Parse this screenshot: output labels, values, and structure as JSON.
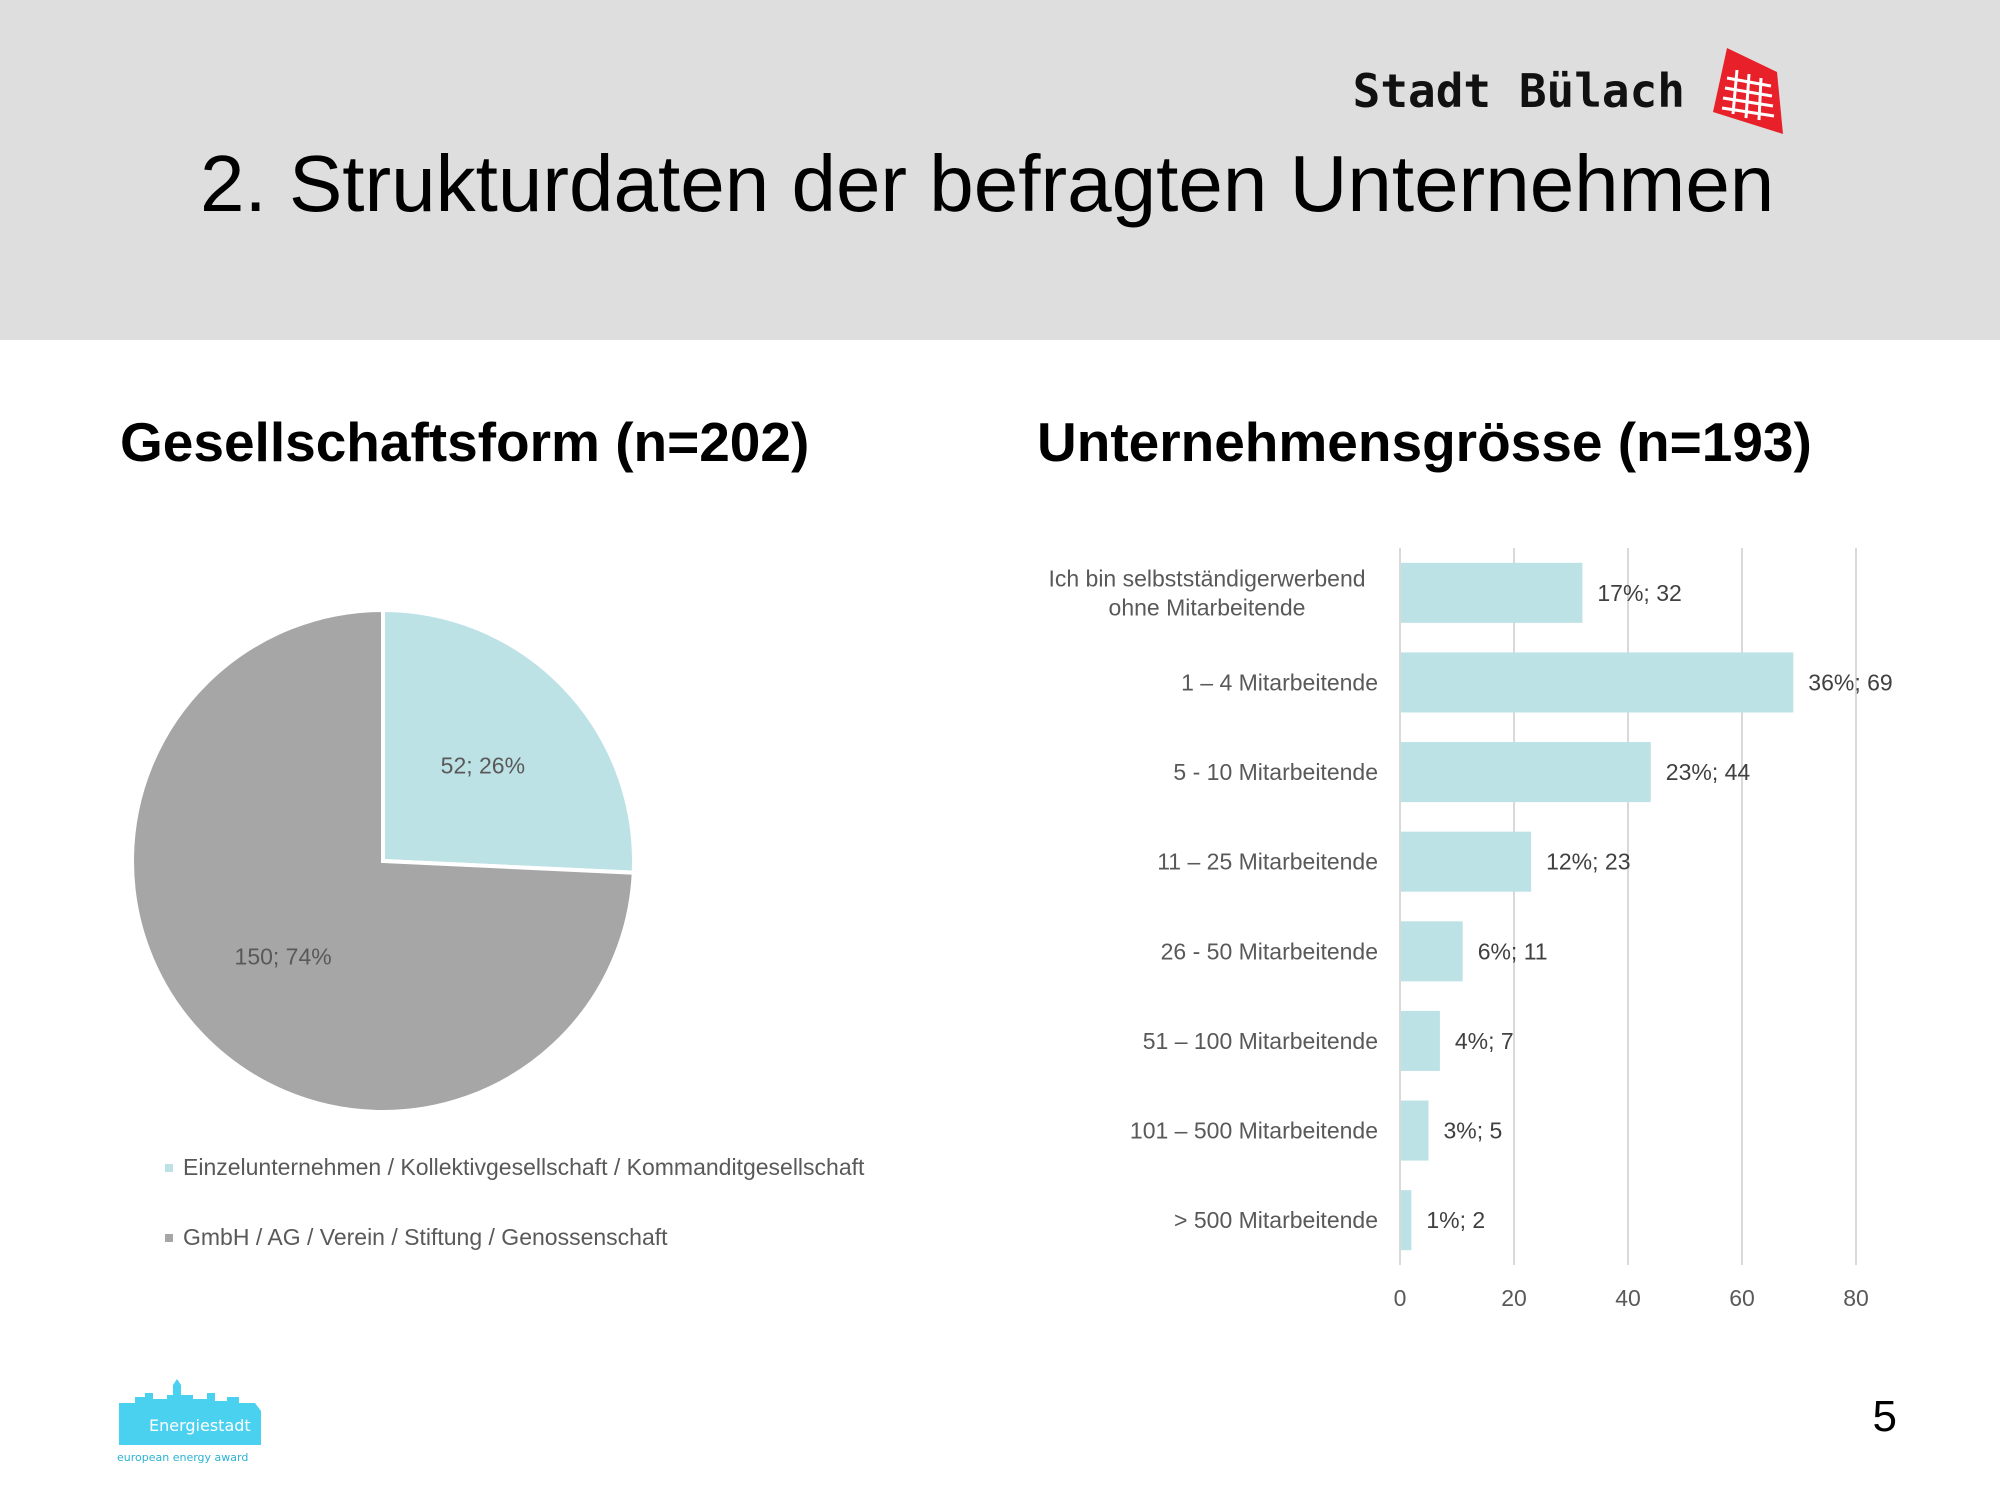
{
  "header": {
    "brand": "Stadt Bülach",
    "title": "2. Strukturdaten der befragten Unternehmen",
    "logo_icon": "stadt-buelach-emblem",
    "accent_color": "#e8202a"
  },
  "chart_data": [
    {
      "type": "pie",
      "title": "Gesellschaftsform (n=202)",
      "slices": [
        {
          "name": "Einzelunternehmen / Kollektivgesellschaft / Kommanditgesellschaft",
          "value": 52,
          "percent": 26,
          "label": "52; 26%",
          "color": "#bde2e6"
        },
        {
          "name": "GmbH / AG / Verein / Stiftung / Genossenschaft",
          "value": 150,
          "percent": 74,
          "label": "150; 74%",
          "color": "#a6a6a6"
        }
      ],
      "legend_position": "bottom"
    },
    {
      "type": "bar",
      "orientation": "horizontal",
      "title": "Unternehmensgrösse (n=193)",
      "categories": [
        [
          "Ich bin selbstständigerwerbend",
          "ohne Mitarbeitende"
        ],
        [
          "1 – 4 Mitarbeitende"
        ],
        [
          "5 - 10 Mitarbeitende"
        ],
        [
          "11 – 25 Mitarbeitende"
        ],
        [
          "26 - 50 Mitarbeitende"
        ],
        [
          "51 – 100 Mitarbeitende"
        ],
        [
          "101 – 500 Mitarbeitende"
        ],
        [
          "> 500 Mitarbeitende"
        ]
      ],
      "values": [
        32,
        69,
        44,
        23,
        11,
        7,
        5,
        2
      ],
      "labels": [
        "17%; 32",
        "36%; 69",
        "23%; 44",
        "12%; 23",
        "6%; 11",
        "4%; 7",
        "3%; 5",
        "1%; 2"
      ],
      "xlim": [
        0,
        80
      ],
      "xticks": [
        "0",
        "20",
        "40",
        "60",
        "80"
      ],
      "grid": true,
      "bar_color": "#bde2e6"
    }
  ],
  "footer": {
    "logo_text": "Energiestadt",
    "logo_subtext": "european energy award",
    "page_number": "5"
  }
}
